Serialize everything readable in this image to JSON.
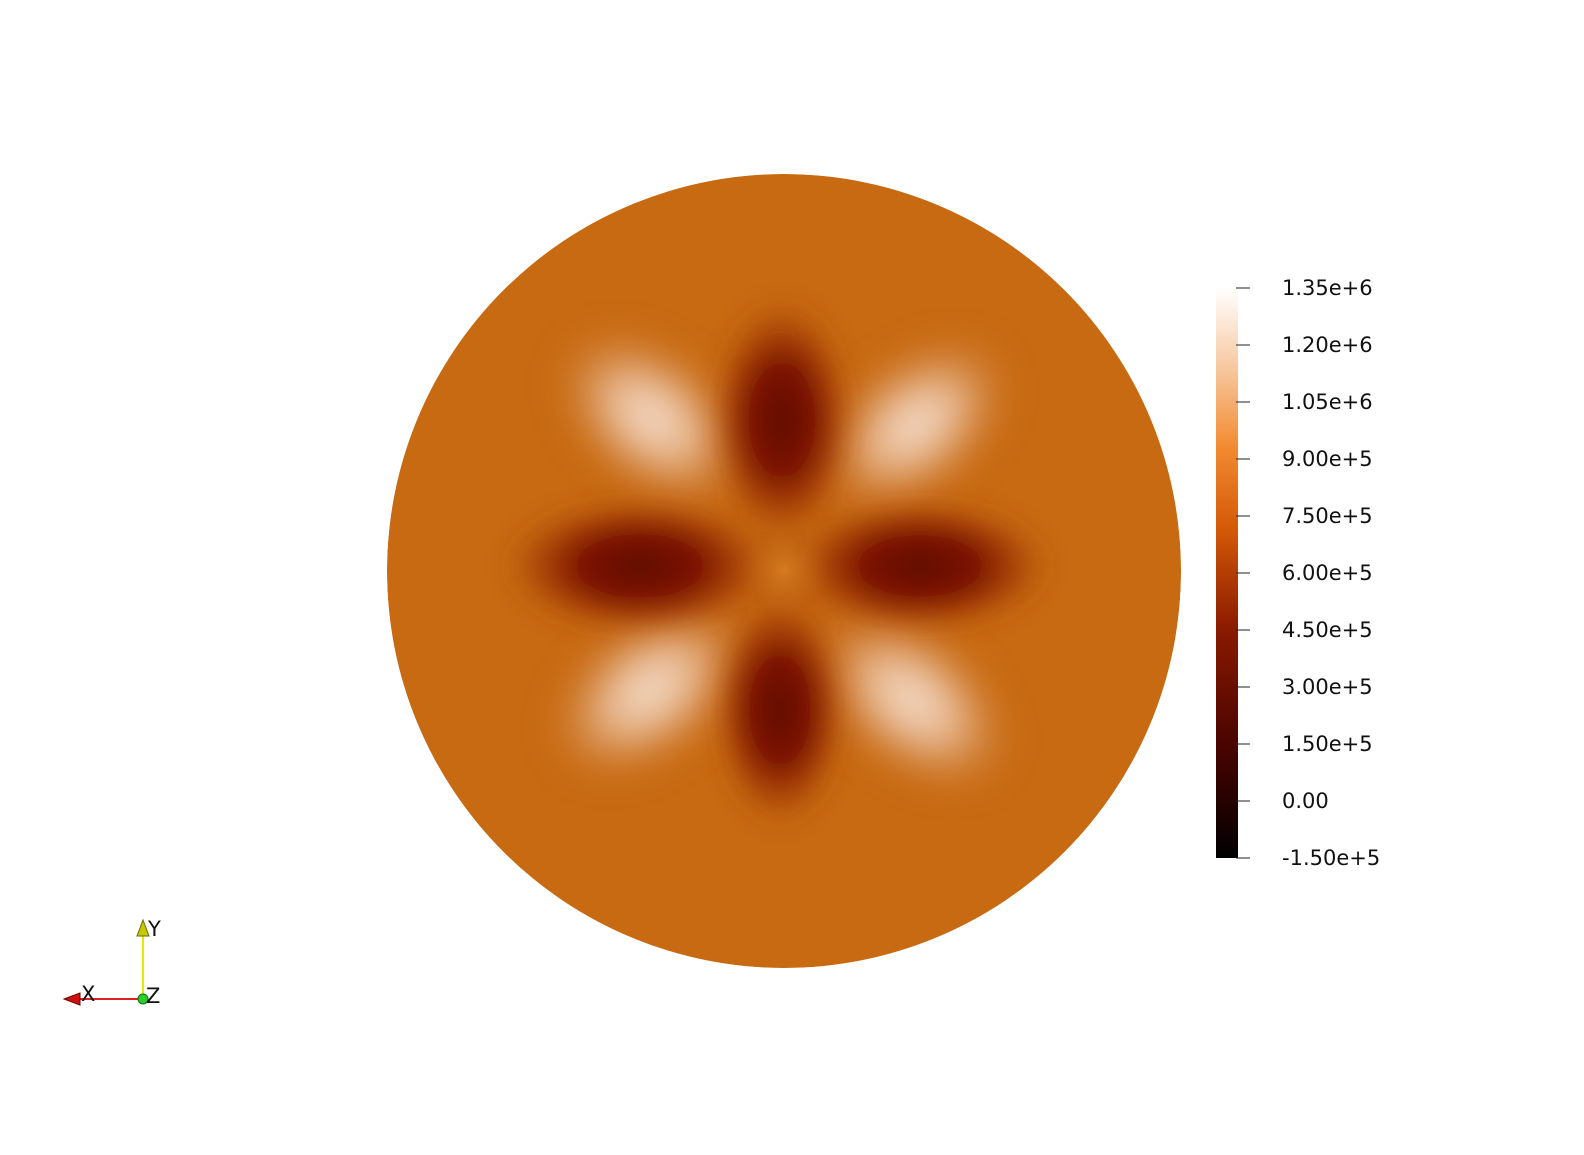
{
  "colorbar": {
    "ticks": [
      {
        "label": "1.35e+6",
        "value": 1350000
      },
      {
        "label": "1.20e+6",
        "value": 1200000
      },
      {
        "label": "1.05e+6",
        "value": 1050000
      },
      {
        "label": "9.00e+5",
        "value": 900000
      },
      {
        "label": "7.50e+5",
        "value": 750000
      },
      {
        "label": "6.00e+5",
        "value": 600000
      },
      {
        "label": "4.50e+5",
        "value": 450000
      },
      {
        "label": "3.00e+5",
        "value": 300000
      },
      {
        "label": "1.50e+5",
        "value": 150000
      },
      {
        "label": "0.00",
        "value": 0
      },
      {
        "label": "-1.50e+5",
        "value": -150000
      }
    ],
    "range": [
      -150000,
      1350000
    ],
    "colors": [
      "#000000",
      "#7a0a00",
      "#c8540a",
      "#f08a3a",
      "#fbe0c8",
      "#ffffff"
    ]
  },
  "field_colors": {
    "base": "#c8690f",
    "low": "#6a0800",
    "high": "#f3dccb"
  },
  "axes": {
    "x_label": "X",
    "y_label": "Y",
    "z_label": "Z"
  }
}
